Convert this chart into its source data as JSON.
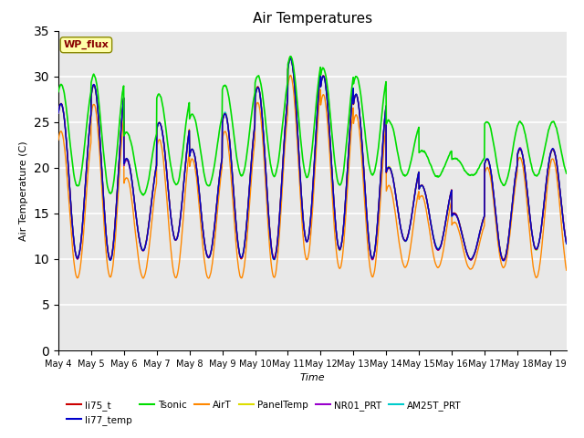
{
  "title": "Air Temperatures",
  "xlabel": "Time",
  "ylabel": "Air Temperature (C)",
  "ylim": [
    0,
    35
  ],
  "yticks": [
    0,
    5,
    10,
    15,
    20,
    25,
    30,
    35
  ],
  "date_labels": [
    "May 4",
    "May 5",
    "May 6",
    "May 7",
    "May 8",
    "May 9",
    "May 10",
    "May 11",
    "May 12",
    "May 13",
    "May 14",
    "May 15",
    "May 16",
    "May 17",
    "May 18",
    "May 19"
  ],
  "xlim_days": 15.5,
  "series": {
    "li75_t": {
      "color": "#cc0000",
      "lw": 1.0
    },
    "li77_temp": {
      "color": "#0000cc",
      "lw": 1.0
    },
    "Tsonic": {
      "color": "#00dd00",
      "lw": 1.2
    },
    "AirT": {
      "color": "#ff8800",
      "lw": 1.0
    },
    "PanelTemp": {
      "color": "#dddd00",
      "lw": 1.0
    },
    "NR01_PRT": {
      "color": "#9900cc",
      "lw": 1.0
    },
    "AM25T_PRT": {
      "color": "#00cccc",
      "lw": 1.0
    }
  },
  "bg_color": "#e8e8e8",
  "grid_color": "white",
  "legend_label": "WP_flux",
  "legend_box_color": "#ffffaa",
  "legend_text_color": "#880000",
  "day_maxes_ref": [
    27,
    29,
    21,
    25,
    22,
    26,
    29,
    32,
    30,
    28,
    20,
    18,
    15,
    21,
    22
  ],
  "day_mins_ref": [
    10,
    10,
    11,
    12,
    10,
    10,
    10,
    12,
    11,
    10,
    12,
    11,
    10,
    10,
    11
  ],
  "day_maxes_tsonic": [
    29,
    30,
    24,
    28,
    26,
    29,
    30,
    32,
    31,
    30,
    25,
    22,
    21,
    25,
    25
  ],
  "day_mins_tsonic": [
    18,
    17,
    17,
    18,
    18,
    19,
    19,
    19,
    18,
    19,
    19,
    19,
    19,
    18,
    19
  ],
  "day_maxes_airt": [
    24,
    27,
    19,
    23,
    21,
    24,
    27,
    30,
    28,
    26,
    18,
    17,
    14,
    20,
    21
  ],
  "day_mins_airt": [
    8,
    8,
    8,
    8,
    8,
    8,
    8,
    10,
    9,
    8,
    9,
    9,
    9,
    9,
    8
  ]
}
